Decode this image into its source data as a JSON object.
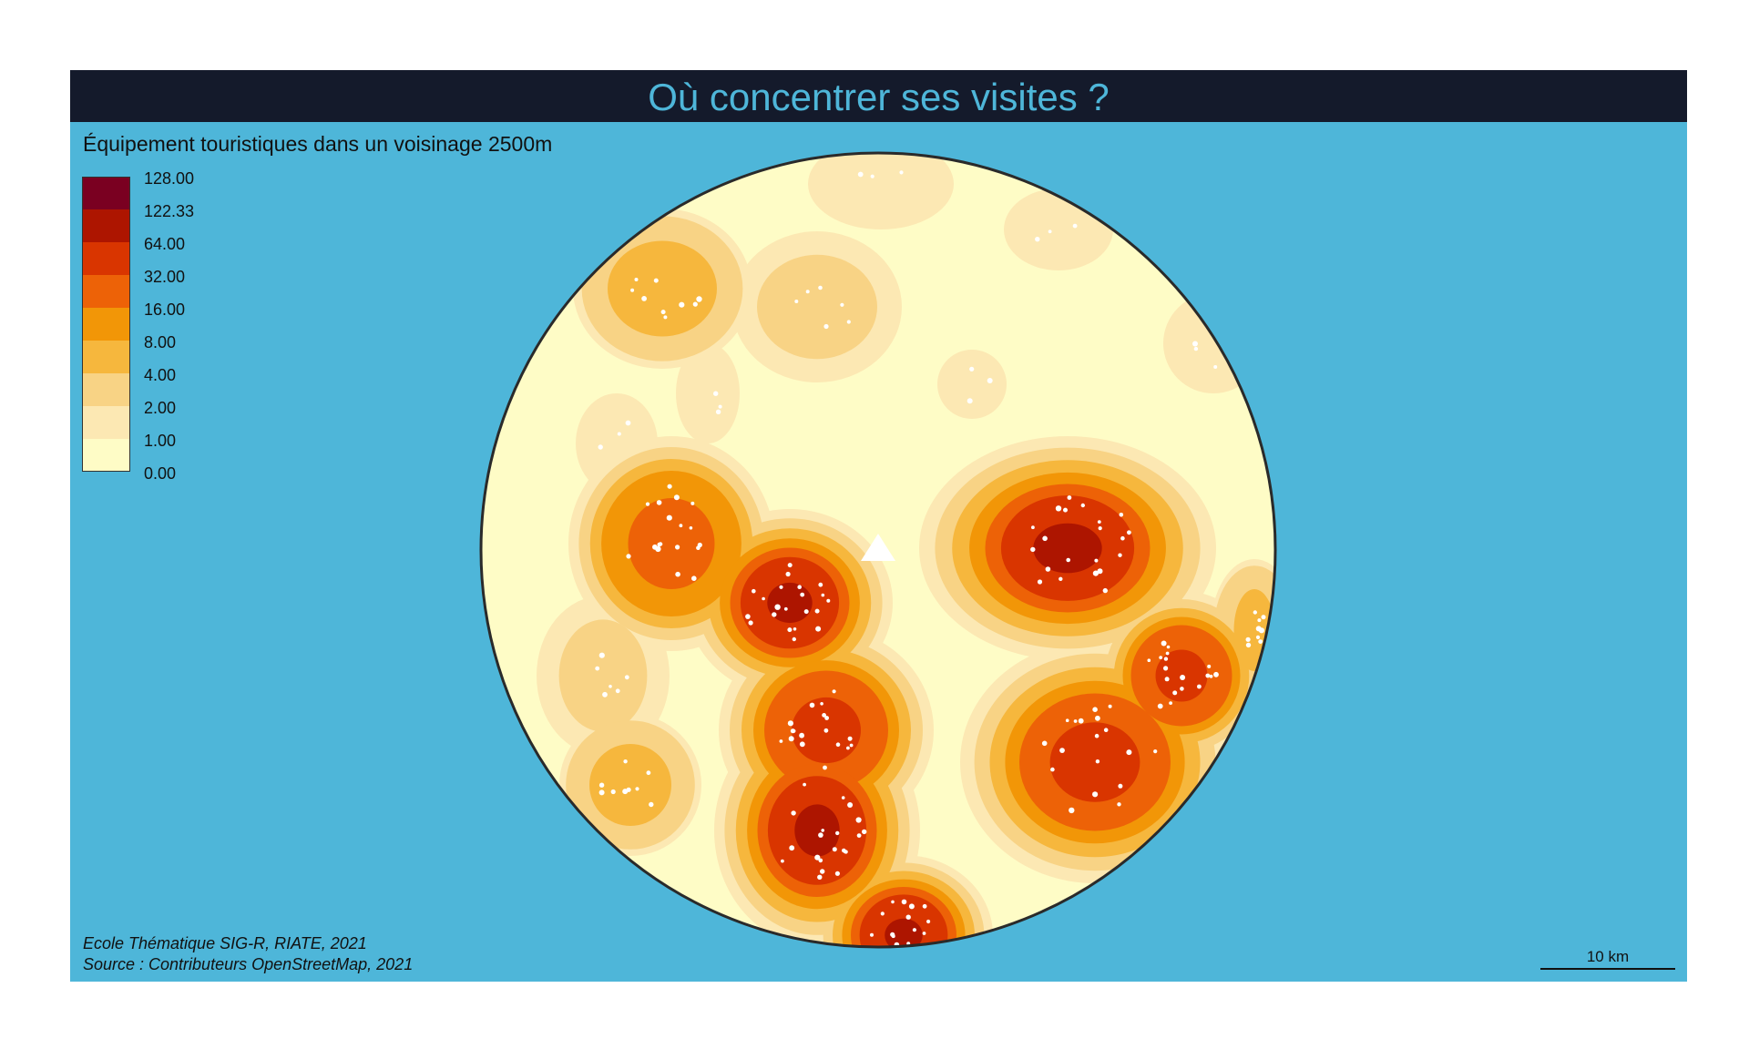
{
  "title": "Où concentrer ses visites ?",
  "legend": {
    "title": "Équipement touristiques dans un voisinage 2500m",
    "breaks": [
      "128.00",
      "122.33",
      "64.00",
      "32.00",
      "16.00",
      "8.00",
      "4.00",
      "2.00",
      "1.00",
      "0.00"
    ],
    "colors": [
      "#7a0021",
      "#ad1500",
      "#d93500",
      "#ed6207",
      "#f29607",
      "#f6b73d",
      "#f8d385",
      "#fce8b3",
      "#fefcc6"
    ]
  },
  "credits": {
    "line1": "Ecole Thématique SIG-R, RIATE, 2021",
    "line2": "Source : Contributeurs OpenStreetMap, 2021"
  },
  "scale": {
    "label": "10 km"
  },
  "colors": {
    "background": "#4eb6d9",
    "title_bar": "#141a2b",
    "title_text": "#4eb6d9",
    "points": "#ffffff",
    "marker": "#ffffff"
  }
}
